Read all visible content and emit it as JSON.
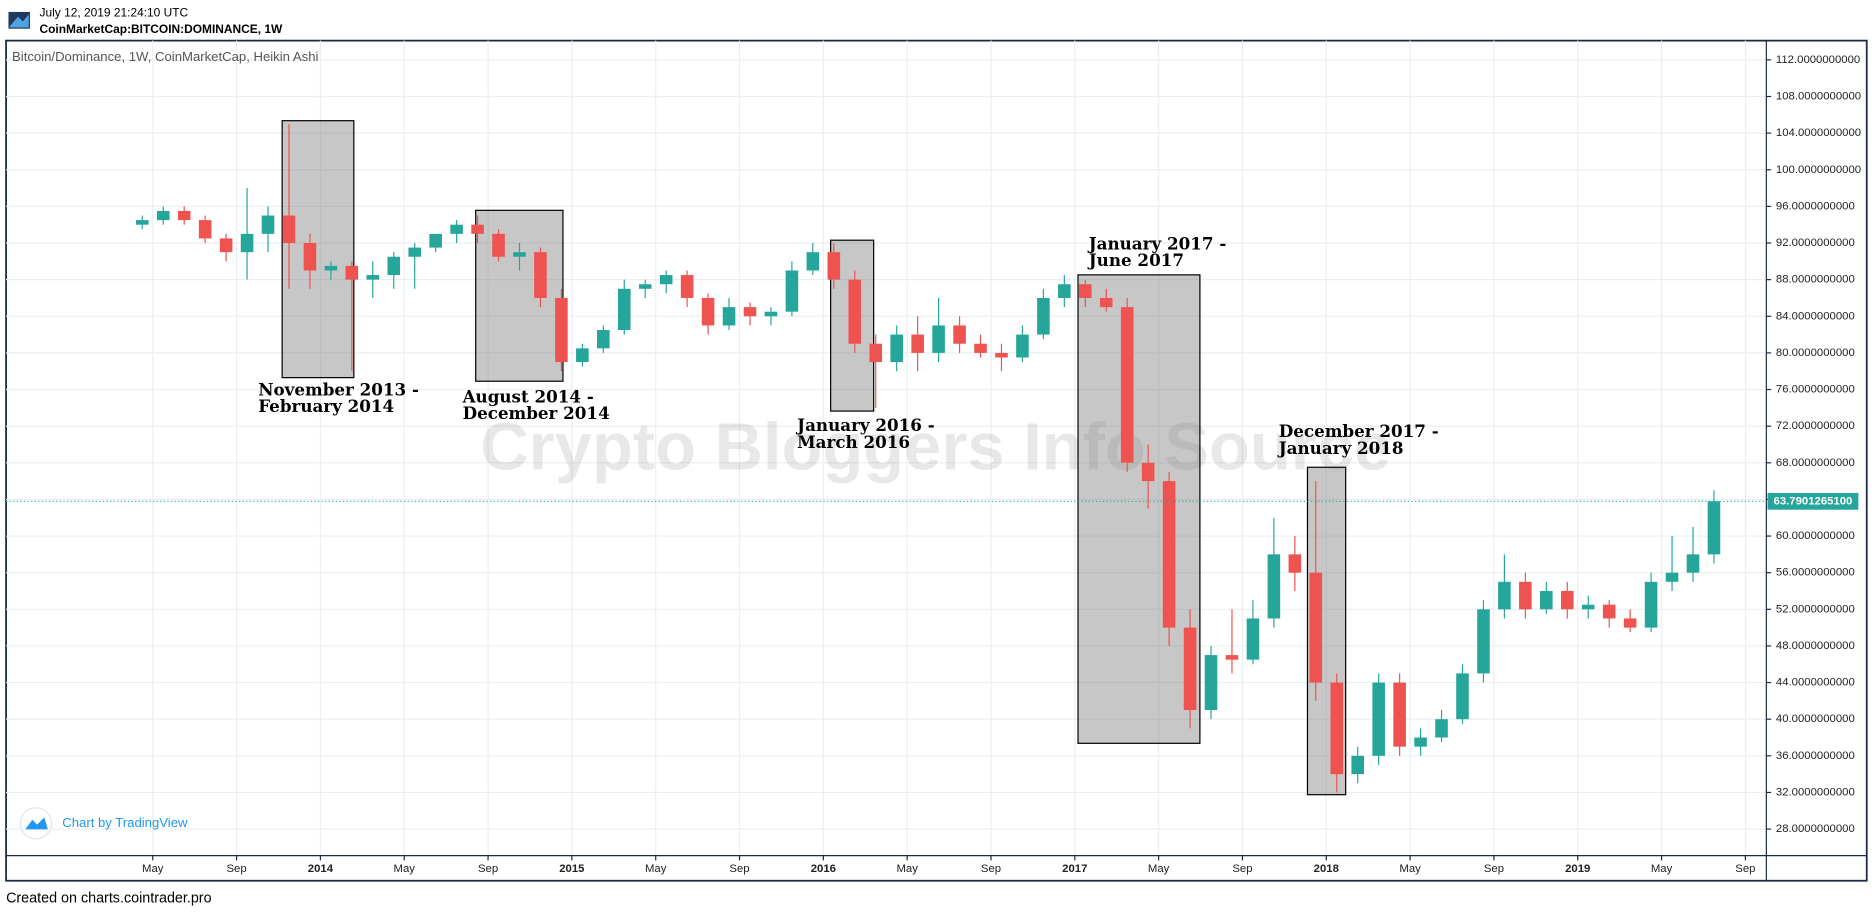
{
  "header": {
    "timestamp": "July 12, 2019 21:24:10 UTC",
    "symbol": "CoinMarketCap:BITCOIN:DOMINANCE, 1W"
  },
  "footer": "Created on charts.cointrader.pro",
  "chart_data": {
    "type": "candlestick",
    "title": "Bitcoin/Dominance, 1W, CoinMarketCap, Heikin Ashi",
    "watermark": "Crypto Bloggers Info Source",
    "branding": "Chart by TradingView",
    "up_color": "#26a69a",
    "down_color": "#ef5350",
    "grid": true,
    "x": [
      "2013-04",
      "2013-05",
      "2013-06",
      "2013-07",
      "2013-08",
      "2013-09",
      "2013-10",
      "2013-11",
      "2013-12",
      "2014-01",
      "2014-02",
      "2014-03",
      "2014-04",
      "2014-05",
      "2014-06",
      "2014-07",
      "2014-08",
      "2014-09",
      "2014-10",
      "2014-11",
      "2014-12",
      "2015-01",
      "2015-02",
      "2015-03",
      "2015-04",
      "2015-05",
      "2015-06",
      "2015-07",
      "2015-08",
      "2015-09",
      "2015-10",
      "2015-11",
      "2015-12",
      "2016-01",
      "2016-02",
      "2016-03",
      "2016-04",
      "2016-05",
      "2016-06",
      "2016-07",
      "2016-08",
      "2016-09",
      "2016-10",
      "2016-11",
      "2016-12",
      "2017-01",
      "2017-02",
      "2017-03",
      "2017-04",
      "2017-05",
      "2017-06",
      "2017-07",
      "2017-08",
      "2017-09",
      "2017-10",
      "2017-11",
      "2017-12",
      "2018-01",
      "2018-02",
      "2018-03",
      "2018-04",
      "2018-05",
      "2018-06",
      "2018-07",
      "2018-08",
      "2018-09",
      "2018-10",
      "2018-11",
      "2018-12",
      "2019-01",
      "2019-02",
      "2019-03",
      "2019-04",
      "2019-05",
      "2019-06",
      "2019-07"
    ],
    "open": [
      94,
      94.5,
      95.5,
      94.5,
      92.5,
      91,
      93,
      95,
      92,
      89,
      89.5,
      88,
      88.5,
      90.5,
      91.5,
      93,
      94,
      93,
      90.5,
      91,
      86,
      79,
      80.5,
      82.5,
      87,
      87.5,
      88.5,
      86,
      83,
      85,
      84,
      84.5,
      89,
      91,
      88,
      81,
      79,
      82,
      80,
      83,
      81,
      80,
      79.5,
      82,
      86,
      87.5,
      86,
      85,
      68,
      66,
      50,
      41,
      47,
      46.5,
      51,
      58,
      56,
      44,
      34,
      36,
      44,
      37,
      38,
      40,
      45,
      52,
      55,
      52,
      54,
      52,
      52.5,
      51,
      50,
      55,
      56,
      58
    ],
    "high": [
      95,
      96,
      96,
      95,
      93,
      98,
      96,
      105,
      93,
      90,
      90,
      90,
      91,
      92,
      93,
      94.5,
      95,
      93.5,
      92,
      91.5,
      87,
      81,
      83,
      88,
      88,
      89,
      89,
      86.5,
      86,
      85.5,
      85,
      90,
      92,
      92,
      89,
      82,
      83,
      84,
      86,
      84,
      82,
      81,
      83,
      87,
      88.5,
      88,
      87,
      86,
      70,
      67,
      52,
      48,
      52,
      53,
      62,
      60,
      66,
      45,
      37,
      45,
      45,
      39,
      41,
      46,
      53,
      58,
      56,
      55,
      55,
      53.5,
      53,
      52,
      56,
      60,
      61,
      65
    ],
    "low": [
      93.5,
      94,
      94,
      92,
      90,
      88,
      91,
      87,
      87,
      88,
      78,
      86,
      87,
      87,
      91,
      92,
      92,
      90,
      89,
      85,
      78,
      78.5,
      80,
      82,
      86,
      86.5,
      85,
      82,
      82.5,
      83,
      83,
      84,
      88.5,
      87,
      80,
      74,
      78,
      78,
      79,
      80,
      79.5,
      78,
      79,
      81.5,
      85,
      85,
      84.5,
      67,
      63,
      48,
      39,
      40,
      45,
      46,
      50,
      54,
      42,
      32,
      33,
      35,
      36,
      36,
      37.5,
      39.5,
      44,
      51,
      51,
      51.5,
      51,
      51,
      50,
      49.5,
      49.5,
      54,
      55,
      57
    ],
    "close": [
      94.5,
      95.5,
      94.5,
      92.5,
      91,
      93,
      95,
      92,
      89,
      89.5,
      88,
      88.5,
      90.5,
      91.5,
      93,
      94,
      93,
      90.5,
      91,
      86,
      79,
      80.5,
      82.5,
      87,
      87.5,
      88.5,
      86,
      83,
      85,
      84,
      84.5,
      89,
      91,
      88,
      81,
      79,
      82,
      80,
      83,
      81,
      80,
      79.5,
      82,
      86,
      87.5,
      86,
      85,
      68,
      66,
      50,
      41,
      47,
      46.5,
      51,
      58,
      56,
      44,
      34,
      36,
      44,
      37,
      38,
      40,
      45,
      52,
      55,
      52,
      54,
      52,
      52.5,
      51,
      50,
      55,
      56,
      58,
      63.8
    ],
    "xlim": [
      "2012-10",
      "2019-10"
    ],
    "xticks": [
      {
        "value": "2013-05",
        "label": "May"
      },
      {
        "value": "2013-09",
        "label": "Sep"
      },
      {
        "value": "2014-01",
        "label": "2014"
      },
      {
        "value": "2014-05",
        "label": "May"
      },
      {
        "value": "2014-09",
        "label": "Sep"
      },
      {
        "value": "2015-01",
        "label": "2015"
      },
      {
        "value": "2015-05",
        "label": "May"
      },
      {
        "value": "2015-09",
        "label": "Sep"
      },
      {
        "value": "2016-01",
        "label": "2016"
      },
      {
        "value": "2016-05",
        "label": "May"
      },
      {
        "value": "2016-09",
        "label": "Sep"
      },
      {
        "value": "2017-01",
        "label": "2017"
      },
      {
        "value": "2017-05",
        "label": "May"
      },
      {
        "value": "2017-09",
        "label": "Sep"
      },
      {
        "value": "2018-01",
        "label": "2018"
      },
      {
        "value": "2018-05",
        "label": "May"
      },
      {
        "value": "2018-09",
        "label": "Sep"
      },
      {
        "value": "2019-01",
        "label": "2019"
      },
      {
        "value": "2019-05",
        "label": "May"
      },
      {
        "value": "2019-09",
        "label": "Sep"
      }
    ],
    "ylim": [
      25.1,
      114.1
    ],
    "yticks": [
      {
        "value": 28,
        "label": "28.0000000000"
      },
      {
        "value": 32,
        "label": "32.0000000000"
      },
      {
        "value": 36,
        "label": "36.0000000000"
      },
      {
        "value": 40,
        "label": "40.0000000000"
      },
      {
        "value": 44,
        "label": "44.0000000000"
      },
      {
        "value": 48,
        "label": "48.0000000000"
      },
      {
        "value": 52,
        "label": "52.0000000000"
      },
      {
        "value": 56,
        "label": "56.0000000000"
      },
      {
        "value": 60,
        "label": "60.0000000000"
      },
      {
        "value": 64,
        "label": "64.0000000000"
      },
      {
        "value": 68,
        "label": "68.0000000000"
      },
      {
        "value": 72,
        "label": "72.0000000000"
      },
      {
        "value": 76,
        "label": "76.0000000000"
      },
      {
        "value": 80,
        "label": "80.0000000000"
      },
      {
        "value": 84,
        "label": "84.0000000000"
      },
      {
        "value": 88,
        "label": "88.0000000000"
      },
      {
        "value": 92,
        "label": "92.0000000000"
      },
      {
        "value": 96,
        "label": "96.0000000000"
      },
      {
        "value": 100,
        "label": "100.0000000000"
      },
      {
        "value": 104,
        "label": "104.0000000000"
      },
      {
        "value": 108,
        "label": "108.0000000000"
      },
      {
        "value": 112,
        "label": "112.0000000000"
      }
    ],
    "last_price": {
      "value": 63.79012651,
      "label": "63.7901265100"
    },
    "annotations": [
      {
        "lines": [
          "November 2013 -",
          "February 2014"
        ]
      },
      {
        "lines": [
          "August 2014 -",
          "December 2014"
        ]
      },
      {
        "lines": [
          "January 2016 -",
          "March 2016"
        ]
      },
      {
        "lines": [
          "January 2017 -",
          "June 2017"
        ]
      },
      {
        "lines": [
          "December 2017 -",
          "January 2018"
        ]
      }
    ]
  }
}
